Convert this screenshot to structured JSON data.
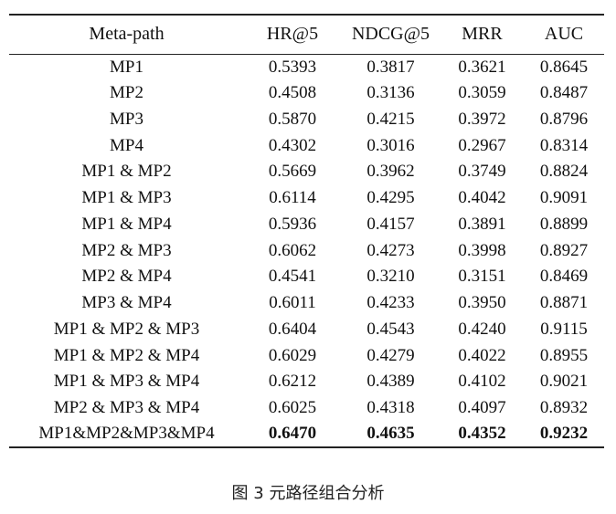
{
  "table": {
    "headers": [
      "Meta-path",
      "HR@5",
      "NDCG@5",
      "MRR",
      "AUC"
    ],
    "rows": [
      {
        "path": "MP1",
        "values": [
          "0.5393",
          "0.3817",
          "0.3621",
          "0.8645"
        ]
      },
      {
        "path": "MP2",
        "values": [
          "0.4508",
          "0.3136",
          "0.3059",
          "0.8487"
        ]
      },
      {
        "path": "MP3",
        "values": [
          "0.5870",
          "0.4215",
          "0.3972",
          "0.8796"
        ]
      },
      {
        "path": "MP4",
        "values": [
          "0.4302",
          "0.3016",
          "0.2967",
          "0.8314"
        ]
      },
      {
        "path": "MP1 & MP2",
        "values": [
          "0.5669",
          "0.3962",
          "0.3749",
          "0.8824"
        ]
      },
      {
        "path": "MP1 & MP3",
        "values": [
          "0.6114",
          "0.4295",
          "0.4042",
          "0.9091"
        ]
      },
      {
        "path": "MP1 & MP4",
        "values": [
          "0.5936",
          "0.4157",
          "0.3891",
          "0.8899"
        ]
      },
      {
        "path": "MP2 & MP3",
        "values": [
          "0.6062",
          "0.4273",
          "0.3998",
          "0.8927"
        ]
      },
      {
        "path": "MP2 & MP4",
        "values": [
          "0.4541",
          "0.3210",
          "0.3151",
          "0.8469"
        ]
      },
      {
        "path": "MP3 & MP4",
        "values": [
          "0.6011",
          "0.4233",
          "0.3950",
          "0.8871"
        ]
      },
      {
        "path": "MP1 & MP2 & MP3",
        "values": [
          "0.6404",
          "0.4543",
          "0.4240",
          "0.9115"
        ]
      },
      {
        "path": "MP1 & MP2 & MP4",
        "values": [
          "0.6029",
          "0.4279",
          "0.4022",
          "0.8955"
        ]
      },
      {
        "path": "MP1 & MP3 & MP4",
        "values": [
          "0.6212",
          "0.4389",
          "0.4102",
          "0.9021"
        ]
      },
      {
        "path": "MP2 & MP3 & MP4",
        "values": [
          "0.6025",
          "0.4318",
          "0.4097",
          "0.8932"
        ]
      },
      {
        "path": "MP1&MP2&MP3&MP4",
        "values": [
          "0.6470",
          "0.4635",
          "0.4352",
          "0.9232"
        ],
        "bold_values": true
      }
    ]
  },
  "caption": "图 3  元路径组合分析"
}
